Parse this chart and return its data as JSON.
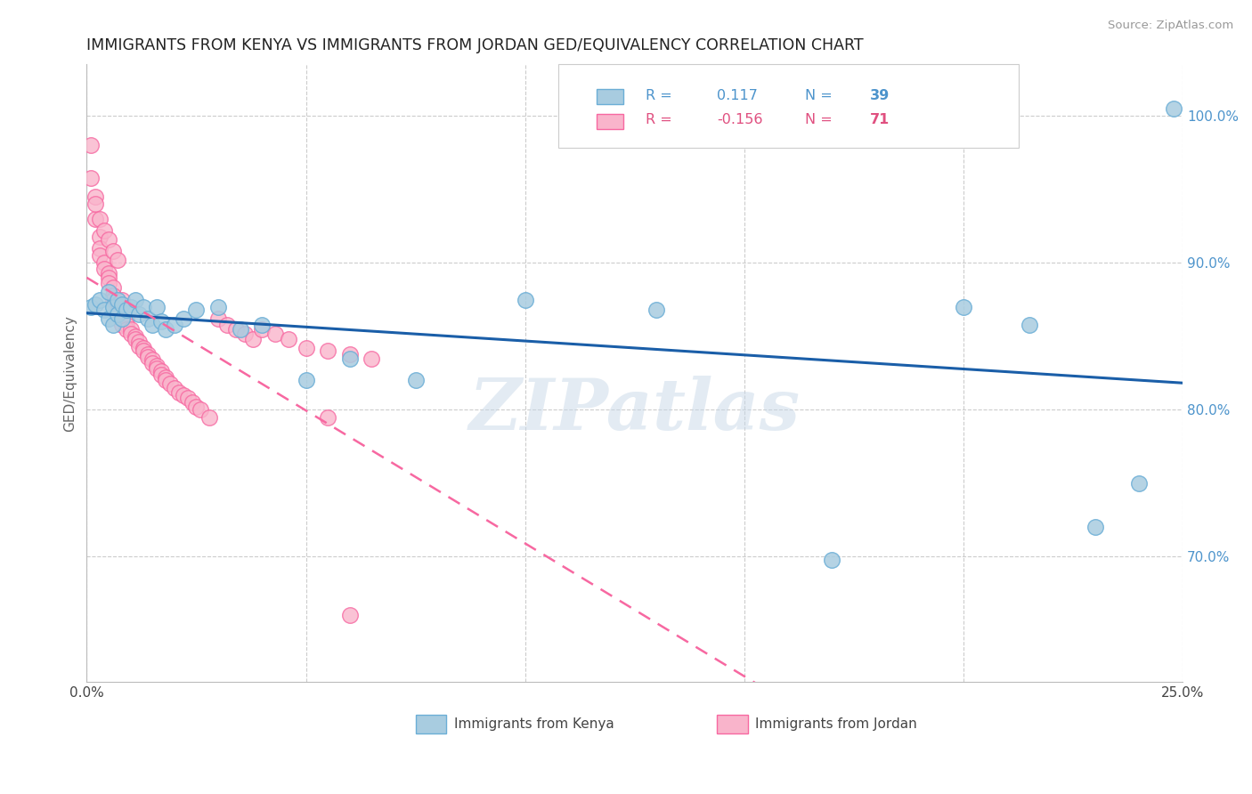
{
  "title": "IMMIGRANTS FROM KENYA VS IMMIGRANTS FROM JORDAN GED/EQUIVALENCY CORRELATION CHART",
  "source": "Source: ZipAtlas.com",
  "ylabel": "GED/Equivalency",
  "xlim": [
    0.0,
    0.25
  ],
  "ylim": [
    0.615,
    1.035
  ],
  "yticks": [
    0.7,
    0.8,
    0.9,
    1.0
  ],
  "ytick_labels": [
    "70.0%",
    "80.0%",
    "90.0%",
    "100.0%"
  ],
  "kenya_color": "#6baed6",
  "kenya_color_fill": "#a8cce0",
  "jordan_color": "#f768a1",
  "jordan_color_fill": "#f9b4cb",
  "kenya_R": 0.117,
  "kenya_N": 39,
  "jordan_R": -0.156,
  "jordan_N": 71,
  "watermark": "ZIPatlas",
  "kenya_x": [
    0.001,
    0.002,
    0.003,
    0.004,
    0.005,
    0.005,
    0.006,
    0.006,
    0.007,
    0.007,
    0.008,
    0.008,
    0.009,
    0.01,
    0.011,
    0.012,
    0.013,
    0.014,
    0.015,
    0.016,
    0.017,
    0.018,
    0.02,
    0.022,
    0.025,
    0.03,
    0.035,
    0.04,
    0.05,
    0.06,
    0.075,
    0.1,
    0.13,
    0.17,
    0.2,
    0.215,
    0.23,
    0.24,
    0.248
  ],
  "kenya_y": [
    0.87,
    0.872,
    0.875,
    0.868,
    0.862,
    0.88,
    0.858,
    0.87,
    0.865,
    0.875,
    0.862,
    0.872,
    0.868,
    0.87,
    0.875,
    0.865,
    0.87,
    0.862,
    0.858,
    0.87,
    0.86,
    0.855,
    0.858,
    0.862,
    0.868,
    0.87,
    0.855,
    0.858,
    0.82,
    0.835,
    0.82,
    0.875,
    0.868,
    0.698,
    0.87,
    0.858,
    0.72,
    0.75,
    1.005
  ],
  "jordan_x": [
    0.001,
    0.001,
    0.002,
    0.002,
    0.003,
    0.003,
    0.003,
    0.004,
    0.004,
    0.005,
    0.005,
    0.005,
    0.006,
    0.006,
    0.006,
    0.007,
    0.007,
    0.007,
    0.008,
    0.008,
    0.009,
    0.009,
    0.009,
    0.01,
    0.01,
    0.011,
    0.011,
    0.012,
    0.012,
    0.013,
    0.013,
    0.014,
    0.014,
    0.015,
    0.015,
    0.016,
    0.016,
    0.017,
    0.017,
    0.018,
    0.018,
    0.019,
    0.02,
    0.021,
    0.022,
    0.023,
    0.024,
    0.025,
    0.026,
    0.028,
    0.03,
    0.032,
    0.034,
    0.036,
    0.038,
    0.04,
    0.043,
    0.046,
    0.05,
    0.055,
    0.06,
    0.065,
    0.002,
    0.003,
    0.004,
    0.005,
    0.006,
    0.007,
    0.008,
    0.055,
    0.06
  ],
  "jordan_y": [
    0.98,
    0.958,
    0.945,
    0.93,
    0.918,
    0.91,
    0.905,
    0.9,
    0.896,
    0.893,
    0.89,
    0.886,
    0.883,
    0.878,
    0.875,
    0.872,
    0.868,
    0.865,
    0.862,
    0.858,
    0.862,
    0.858,
    0.855,
    0.855,
    0.852,
    0.85,
    0.848,
    0.846,
    0.843,
    0.842,
    0.84,
    0.838,
    0.836,
    0.834,
    0.832,
    0.83,
    0.828,
    0.826,
    0.824,
    0.822,
    0.82,
    0.818,
    0.815,
    0.812,
    0.81,
    0.808,
    0.805,
    0.802,
    0.8,
    0.795,
    0.862,
    0.858,
    0.855,
    0.852,
    0.848,
    0.855,
    0.852,
    0.848,
    0.842,
    0.84,
    0.838,
    0.835,
    0.94,
    0.93,
    0.922,
    0.916,
    0.908,
    0.902,
    0.875,
    0.795,
    0.66
  ],
  "grid_color": "#cccccc",
  "bg_color": "#ffffff"
}
